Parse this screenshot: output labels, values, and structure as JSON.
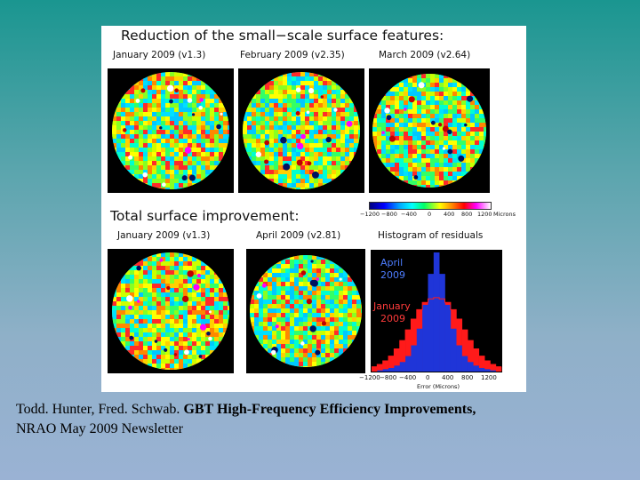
{
  "figure": {
    "top_title": "Reduction of the small−scale surface features:",
    "top_labels": [
      "January 2009 (v1.3)",
      "February 2009 (v2.35)",
      "March 2009 (v2.64)"
    ],
    "bottom_title": "Total surface improvement:",
    "bottom_labels": [
      "January 2009 (v1.3)",
      "April 2009 (v2.81)",
      "Histogram of residuals"
    ],
    "colorbar": {
      "ticks": [
        "−1200",
        "−800",
        "−400",
        "0",
        "400",
        "800",
        "1200"
      ],
      "unit": "Microns"
    },
    "histogram": {
      "label_april_1": "April",
      "label_april_2": "2009",
      "label_january_1": "January",
      "label_january_2": "2009",
      "x_ticks": [
        "−1200",
        "−800",
        "−400",
        "0",
        "400",
        "800",
        "1200"
      ],
      "x_label": "Error (Microns)",
      "colors": {
        "april": "#1f35d8",
        "january": "#ff1a1a"
      }
    }
  },
  "chart_data": {
    "type": "bar",
    "title": "Histogram of residuals",
    "xlabel": "Error (Microns)",
    "ylabel": "",
    "xlim": [
      -1200,
      1200
    ],
    "ylim": [
      0,
      1
    ],
    "categories": [
      -1100,
      -1000,
      -900,
      -800,
      -700,
      -600,
      -500,
      -400,
      -300,
      -200,
      -100,
      0,
      100,
      200,
      300,
      400,
      500,
      600,
      700,
      800,
      900,
      1000,
      1100
    ],
    "series": [
      {
        "name": "January 2009",
        "values": [
          0.04,
          0.06,
          0.09,
          0.13,
          0.19,
          0.26,
          0.35,
          0.44,
          0.52,
          0.58,
          0.61,
          0.62,
          0.61,
          0.58,
          0.52,
          0.44,
          0.35,
          0.26,
          0.19,
          0.13,
          0.09,
          0.06,
          0.04
        ]
      },
      {
        "name": "April 2009",
        "values": [
          0.0,
          0.01,
          0.02,
          0.03,
          0.05,
          0.08,
          0.13,
          0.22,
          0.36,
          0.56,
          0.82,
          1.0,
          0.82,
          0.56,
          0.36,
          0.22,
          0.13,
          0.08,
          0.05,
          0.03,
          0.02,
          0.01,
          0.0
        ]
      }
    ]
  },
  "caption": {
    "authors": "Todd. Hunter, Fred. Schwab.",
    "title": "GBT High-Frequency Efficiency Improvements,",
    "source": "NRAO May 2009 Newsletter"
  }
}
